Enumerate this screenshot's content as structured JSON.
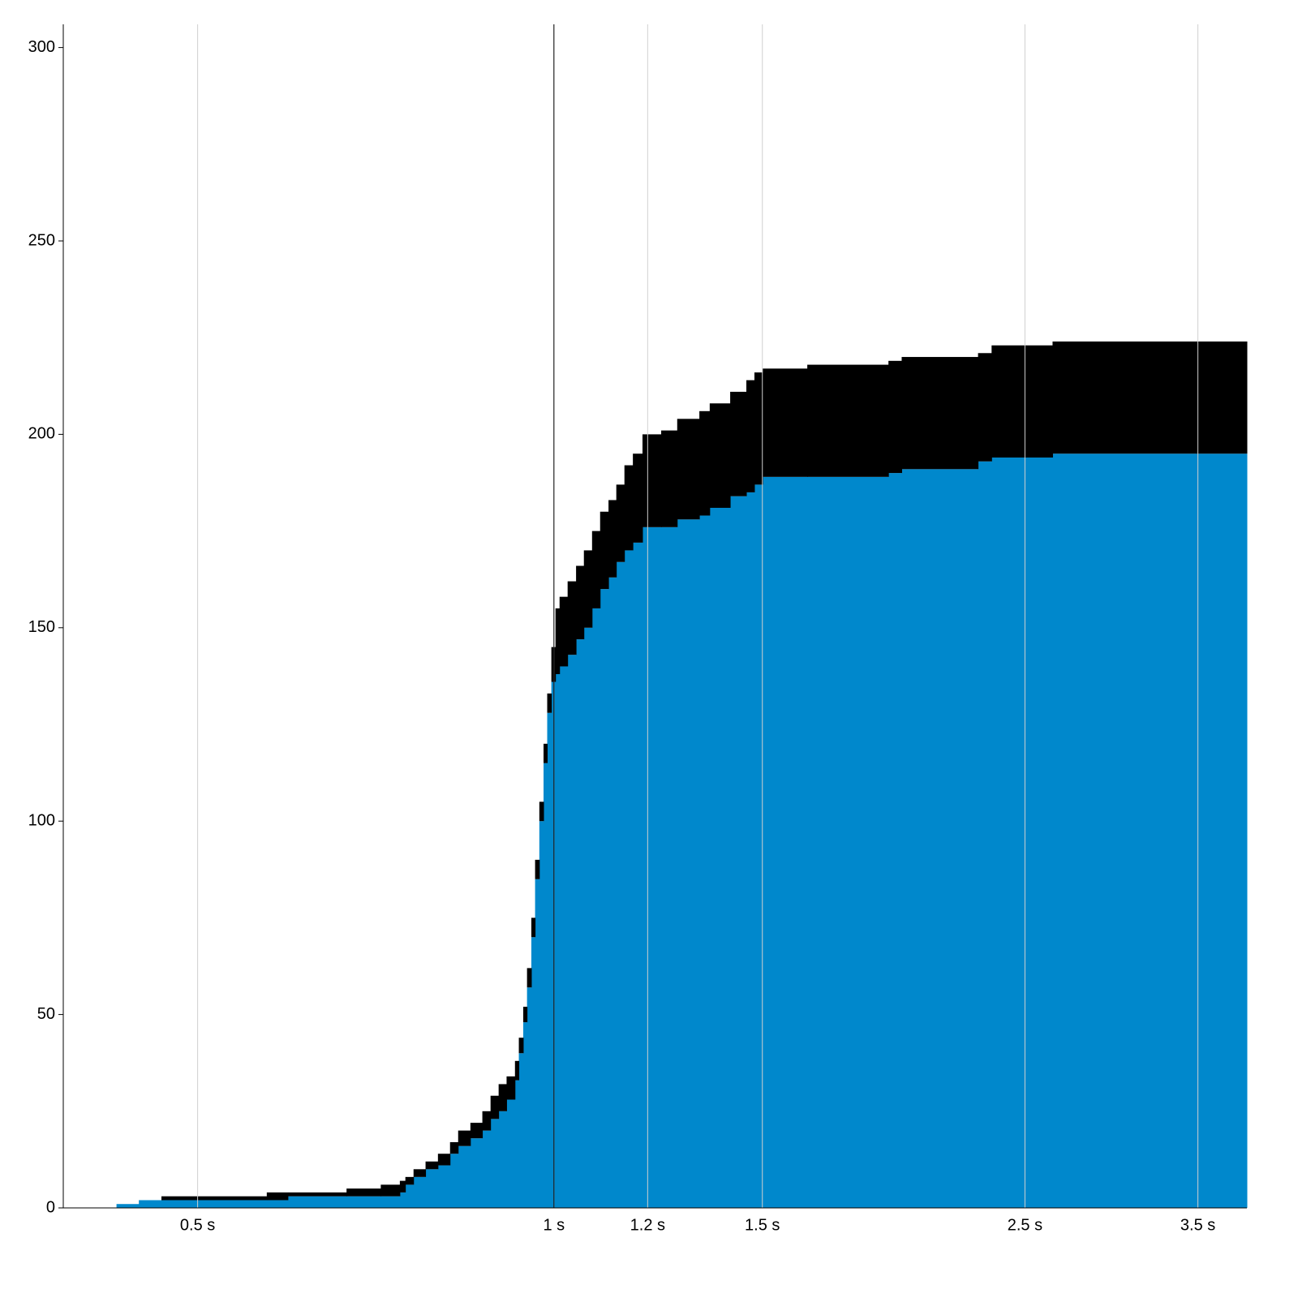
{
  "chart_data": {
    "type": "step-area",
    "x": [
      0.427,
      0.446,
      0.466,
      0.572,
      0.596,
      0.668,
      0.714,
      0.741,
      0.749,
      0.761,
      0.779,
      0.798,
      0.817,
      0.83,
      0.85,
      0.87,
      0.884,
      0.898,
      0.912,
      0.927,
      0.934,
      0.942,
      0.949,
      0.957,
      0.964,
      0.972,
      0.98,
      0.987,
      0.995,
      1.003,
      1.011,
      1.027,
      1.044,
      1.06,
      1.077,
      1.094,
      1.112,
      1.129,
      1.147,
      1.166,
      1.188,
      1.232,
      1.271,
      1.327,
      1.354,
      1.409,
      1.454,
      1.477,
      1.501,
      1.637,
      1.917,
      1.967,
      2.282,
      2.343,
      2.638
    ],
    "series": [
      {
        "color": "#0088cc",
        "values": [
          1,
          2,
          2,
          2,
          3,
          3,
          3,
          4,
          6,
          8,
          10,
          11,
          14,
          16,
          18,
          20,
          23,
          25,
          28,
          33,
          40,
          48,
          57,
          70,
          85,
          100,
          115,
          128,
          136,
          138,
          140,
          143,
          147,
          150,
          155,
          160,
          163,
          167,
          170,
          172,
          176,
          176,
          178,
          179,
          181,
          184,
          185,
          187,
          189,
          189,
          190,
          191,
          193,
          194,
          195
        ]
      },
      {
        "color": "#000000",
        "values": [
          0,
          0,
          1,
          2,
          1,
          2,
          3,
          3,
          2,
          2,
          2,
          3,
          3,
          4,
          4,
          5,
          6,
          7,
          6,
          5,
          4,
          4,
          5,
          5,
          5,
          5,
          5,
          5,
          9,
          17,
          18,
          19,
          19,
          20,
          20,
          20,
          20,
          20,
          22,
          23,
          24,
          25,
          26,
          27,
          27,
          27,
          29,
          29,
          28,
          29,
          29,
          29,
          28,
          29,
          29
        ]
      }
    ],
    "xscale": "log",
    "xlim": [
      0.385,
      3.85
    ],
    "xticks": [
      {
        "value": 0.5,
        "label": "0.5 s"
      },
      {
        "value": 1,
        "label": "1 s"
      },
      {
        "value": 1.2,
        "label": "1.2 s"
      },
      {
        "value": 1.5,
        "label": "1.5 s"
      },
      {
        "value": 2.5,
        "label": "2.5 s"
      },
      {
        "value": 3.5,
        "label": "3.5 s"
      }
    ],
    "ylim": [
      0,
      306
    ],
    "yticks": [
      0,
      50,
      100,
      150,
      200,
      250,
      300
    ],
    "grid": true,
    "grid_color": "#d0d0d0",
    "reference_line": {
      "x": 1,
      "color": "#000000"
    }
  }
}
